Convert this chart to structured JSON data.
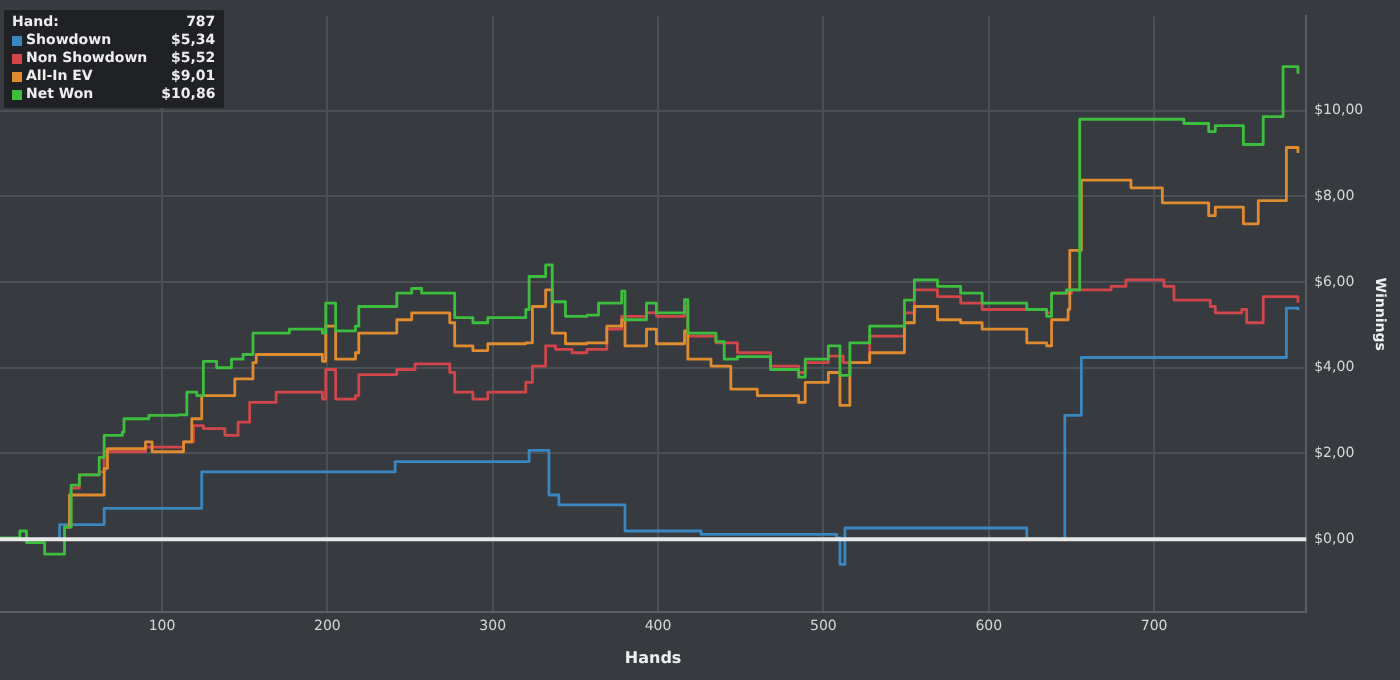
{
  "chart_data": {
    "type": "step",
    "xlabel": "Hands",
    "ylabel": "Winnings",
    "xlim": [
      2,
      792
    ],
    "xticks": [
      100,
      200,
      300,
      400,
      500,
      600,
      700
    ],
    "ylim": [
      -1.7,
      12.2
    ],
    "yticks": [
      {
        "value": 0,
        "label": "$0,00"
      },
      {
        "value": 2,
        "label": "$2,00"
      },
      {
        "value": 4,
        "label": "$4,00"
      },
      {
        "value": 6,
        "label": "$6,00"
      },
      {
        "value": 8,
        "label": "$8,00"
      },
      {
        "value": 10,
        "label": "$10,00"
      }
    ],
    "grid": true,
    "legend": "top left",
    "marker": "none",
    "line_style": "solid",
    "annotations": [
      "Hand:",
      "787",
      "$5,34",
      "$5,52",
      "$9,01",
      "$10,86"
    ],
    "ref_lines": [
      {
        "axis": "y",
        "value": 0,
        "color": "#e8e8e8"
      }
    ],
    "series": [
      {
        "name": "Showdown",
        "color": "#3a86c0",
        "x": [
          2,
          38,
          65,
          124,
          241,
          322,
          334,
          340,
          380,
          426,
          508,
          510,
          513,
          623,
          646,
          656,
          780,
          787
        ],
        "values": [
          0,
          0.34,
          0.72,
          1.57,
          1.81,
          2.07,
          1.03,
          0.8,
          0.19,
          0.11,
          0.03,
          -0.59,
          0.26,
          0,
          2.89,
          4.24,
          5.39,
          5.34
        ]
      },
      {
        "name": "Non Showdown",
        "color": "#d2454a",
        "x": [
          41,
          45,
          50,
          62,
          65,
          90,
          113,
          119,
          125,
          138,
          146,
          153,
          169,
          197,
          199,
          205,
          217,
          219,
          242,
          253,
          274,
          277,
          288,
          297,
          320,
          324,
          332,
          338,
          348,
          357,
          369,
          378,
          393,
          399,
          416,
          418,
          435,
          448,
          468,
          485,
          489,
          503,
          512,
          528,
          549,
          555,
          569,
          583,
          596,
          635,
          638,
          650,
          674,
          683,
          706,
          712,
          734,
          737,
          753,
          756,
          766,
          787
        ],
        "values": [
          0.28,
          1.19,
          1.5,
          1.57,
          2.04,
          2.15,
          2.27,
          2.65,
          2.58,
          2.42,
          2.73,
          3.19,
          3.43,
          3.27,
          3.96,
          3.27,
          3.35,
          3.84,
          3.96,
          4.09,
          3.89,
          3.43,
          3.27,
          3.43,
          3.66,
          4.04,
          4.51,
          4.43,
          4.35,
          4.43,
          4.9,
          5.2,
          5.28,
          5.2,
          5.43,
          4.74,
          4.58,
          4.35,
          4.04,
          3.89,
          4.12,
          4.27,
          4.12,
          4.74,
          5.28,
          5.82,
          5.66,
          5.51,
          5.36,
          5.28,
          5.74,
          5.82,
          5.9,
          6.05,
          5.9,
          5.58,
          5.43,
          5.28,
          5.36,
          5.05,
          5.66,
          5.52
        ]
      },
      {
        "name": "All-In EV",
        "color": "#e08b2e",
        "x": [
          41,
          44,
          65,
          67,
          90,
          94,
          113,
          118,
          124,
          144,
          155,
          157,
          197,
          199,
          205,
          217,
          219,
          242,
          251,
          274,
          277,
          288,
          297,
          320,
          324,
          332,
          336,
          344,
          357,
          369,
          378,
          380,
          393,
          399,
          416,
          418,
          432,
          444,
          460,
          485,
          489,
          503,
          510,
          516,
          528,
          549,
          555,
          569,
          583,
          596,
          623,
          635,
          638,
          648,
          649,
          656,
          686,
          705,
          733,
          737,
          754,
          763,
          780,
          787
        ],
        "values": [
          0.28,
          1.03,
          1.65,
          2.11,
          2.27,
          2.04,
          2.27,
          2.81,
          3.35,
          3.74,
          4.12,
          4.31,
          4.15,
          4.97,
          4.2,
          4.35,
          4.81,
          5.12,
          5.28,
          5.05,
          4.51,
          4.4,
          4.56,
          4.58,
          5.43,
          5.82,
          4.81,
          4.56,
          4.58,
          4.97,
          5.12,
          4.51,
          4.9,
          4.56,
          4.86,
          4.2,
          4.04,
          3.5,
          3.35,
          3.19,
          3.66,
          3.89,
          3.12,
          4.12,
          4.35,
          5.05,
          5.43,
          5.12,
          5.05,
          4.9,
          4.58,
          4.51,
          5.12,
          5.36,
          6.74,
          8.38,
          8.2,
          7.85,
          7.55,
          7.75,
          7.36,
          7.9,
          9.14,
          9.01
        ]
      },
      {
        "name": "Net Won",
        "color": "#3cbf3c",
        "x": [
          2,
          14,
          18,
          29,
          41,
          45,
          50,
          62,
          65,
          76,
          77,
          92,
          110,
          115,
          121,
          125,
          133,
          142,
          149,
          155,
          177,
          197,
          199,
          205,
          217,
          219,
          242,
          251,
          257,
          277,
          288,
          297,
          320,
          322,
          332,
          336,
          344,
          357,
          364,
          378,
          380,
          393,
          399,
          416,
          418,
          435,
          440,
          448,
          468,
          485,
          489,
          503,
          510,
          516,
          528,
          549,
          555,
          569,
          583,
          596,
          623,
          635,
          638,
          647,
          655,
          718,
          733,
          737,
          754,
          766,
          778,
          787
        ],
        "values": [
          0.03,
          0.19,
          -0.08,
          -0.35,
          0.28,
          1.26,
          1.5,
          1.91,
          2.42,
          2.5,
          2.81,
          2.89,
          2.9,
          3.43,
          3.35,
          4.15,
          4.0,
          4.2,
          4.31,
          4.81,
          4.9,
          4.81,
          5.51,
          4.86,
          4.97,
          5.43,
          5.74,
          5.85,
          5.74,
          5.17,
          5.05,
          5.17,
          5.36,
          6.13,
          6.4,
          5.54,
          5.2,
          5.23,
          5.51,
          5.79,
          5.12,
          5.51,
          5.28,
          5.59,
          4.81,
          4.61,
          4.2,
          4.26,
          3.96,
          3.78,
          4.2,
          4.51,
          3.82,
          4.58,
          4.97,
          5.58,
          6.05,
          5.9,
          5.74,
          5.51,
          5.36,
          5.2,
          5.74,
          5.82,
          9.8,
          9.7,
          9.51,
          9.65,
          9.21,
          9.86,
          11.03,
          10.86
        ]
      }
    ]
  }
}
